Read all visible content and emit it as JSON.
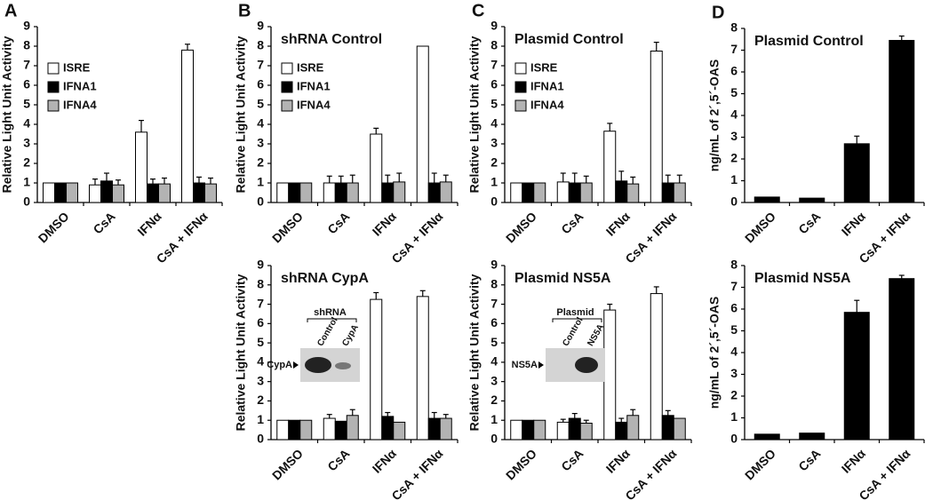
{
  "chart_data": [
    {
      "type": "bar",
      "panel": "A",
      "y_label": "Relative Light Unit Activity",
      "categories": [
        "DMSO",
        "CsA",
        "IFNα",
        "CsA + IFNα"
      ],
      "series": [
        {
          "name": "ISRE",
          "color": "#ffffff",
          "values": [
            1,
            0.9,
            3.6,
            7.8
          ],
          "errors": [
            null,
            0.3,
            0.6,
            0.3
          ]
        },
        {
          "name": "IFNA1",
          "color": "#000000",
          "values": [
            1,
            1.1,
            0.95,
            1
          ],
          "errors": [
            null,
            0.4,
            0.25,
            0.3
          ]
        },
        {
          "name": "IFNA4",
          "color": "#b3b3b3",
          "values": [
            1,
            0.9,
            0.95,
            0.95
          ],
          "errors": [
            null,
            0.25,
            0.3,
            0.3
          ]
        }
      ],
      "ylim": [
        0,
        9
      ],
      "yticks": [
        0,
        1,
        2,
        3,
        4,
        5,
        6,
        7,
        8,
        9
      ],
      "legend": "upper left"
    },
    {
      "type": "bar",
      "panel": "B",
      "title": "shRNA Control",
      "y_label": "Relative Light Unit Activity",
      "categories": [
        "DMSO",
        "CsA",
        "IFNα",
        "CsA + IFNα"
      ],
      "series": [
        {
          "name": "ISRE",
          "color": "#ffffff",
          "values": [
            1,
            1,
            3.5,
            8
          ],
          "errors": [
            null,
            0.35,
            0.3,
            null
          ]
        },
        {
          "name": "IFNA1",
          "color": "#000000",
          "values": [
            1,
            1,
            1,
            1
          ],
          "errors": [
            null,
            0.35,
            0.4,
            0.5
          ]
        },
        {
          "name": "IFNA4",
          "color": "#b3b3b3",
          "values": [
            1,
            1,
            1.05,
            1.05
          ],
          "errors": [
            null,
            0.4,
            0.45,
            0.35
          ]
        }
      ],
      "ylim": [
        0,
        9
      ],
      "yticks": [
        0,
        1,
        2,
        3,
        4,
        5,
        6,
        7,
        8,
        9
      ],
      "legend": "upper left"
    },
    {
      "type": "bar",
      "panel": "C",
      "title": "Plasmid Control",
      "y_label": "Relative Light Unit Activity",
      "categories": [
        "DMSO",
        "CsA",
        "IFNα",
        "CsA + IFNα"
      ],
      "series": [
        {
          "name": "ISRE",
          "color": "#ffffff",
          "values": [
            1,
            1.05,
            3.65,
            7.75
          ],
          "errors": [
            null,
            0.45,
            0.4,
            0.45
          ]
        },
        {
          "name": "IFNA1",
          "color": "#000000",
          "values": [
            1,
            1,
            1.1,
            1
          ],
          "errors": [
            null,
            0.5,
            0.5,
            0.4
          ]
        },
        {
          "name": "IFNA4",
          "color": "#b3b3b3",
          "values": [
            1,
            1,
            0.95,
            1
          ],
          "errors": [
            null,
            0.35,
            0.35,
            0.4
          ]
        }
      ],
      "ylim": [
        0,
        9
      ],
      "yticks": [
        0,
        1,
        2,
        3,
        4,
        5,
        6,
        7,
        8,
        9
      ],
      "legend": "upper left"
    },
    {
      "type": "bar",
      "panel": "D",
      "title": "Plasmid Control",
      "y_label": "ng/mL of 2´,5´-OAS",
      "categories": [
        "DMSO",
        "CsA",
        "IFNα",
        "CsA + IFNα"
      ],
      "values": [
        0.25,
        0.2,
        2.7,
        7.45
      ],
      "errors": [
        null,
        null,
        0.35,
        0.2
      ],
      "color": "#000000",
      "ylim": [
        0,
        8
      ],
      "yticks": [
        0,
        1,
        2,
        3,
        4,
        5,
        6,
        7,
        8
      ]
    },
    {
      "type": "bar",
      "title": "shRNA CypA",
      "y_label": "Relative Light Unit Activity",
      "categories": [
        "DMSO",
        "CsA",
        "IFNα",
        "CsA + IFNα"
      ],
      "series": [
        {
          "color": "#ffffff",
          "values": [
            1,
            1.1,
            7.25,
            7.4
          ],
          "errors": [
            null,
            0.2,
            0.35,
            0.3
          ]
        },
        {
          "color": "#000000",
          "values": [
            1,
            0.95,
            1.2,
            1.1
          ],
          "errors": [
            null,
            null,
            0.2,
            0.3
          ]
        },
        {
          "color": "#b3b3b3",
          "values": [
            1,
            1.25,
            0.9,
            1.1
          ],
          "errors": [
            null,
            0.3,
            null,
            0.2
          ]
        }
      ],
      "ylim": [
        0,
        9
      ],
      "yticks": [
        0,
        1,
        2,
        3,
        4,
        5,
        6,
        7,
        8,
        9
      ],
      "inset": {
        "title": "shRNA",
        "lanes": [
          "Control",
          "CypA"
        ],
        "marker": "CypA"
      }
    },
    {
      "type": "bar",
      "title": "Plasmid NS5A",
      "y_label": "Relative Light Unit Activity",
      "categories": [
        "DMSO",
        "CsA",
        "IFNα",
        "CsA + IFNα"
      ],
      "series": [
        {
          "color": "#ffffff",
          "values": [
            1,
            0.9,
            6.7,
            7.55
          ],
          "errors": [
            null,
            0.15,
            0.3,
            0.35
          ]
        },
        {
          "color": "#000000",
          "values": [
            1,
            1.1,
            0.9,
            1.25
          ],
          "errors": [
            null,
            0.25,
            0.2,
            0.25
          ]
        },
        {
          "color": "#b3b3b3",
          "values": [
            1,
            0.85,
            1.25,
            1.1
          ],
          "errors": [
            null,
            0.15,
            0.3,
            null
          ]
        }
      ],
      "ylim": [
        0,
        9
      ],
      "yticks": [
        0,
        1,
        2,
        3,
        4,
        5,
        6,
        7,
        8,
        9
      ],
      "inset": {
        "title": "Plasmid",
        "lanes": [
          "Control",
          "NS5A"
        ],
        "marker": "NS5A"
      }
    },
    {
      "type": "bar",
      "title": "Plasmid NS5A",
      "y_label": "ng/mL of 2´,5´-OAS",
      "categories": [
        "DMSO",
        "CsA",
        "IFNα",
        "CsA + IFNα"
      ],
      "values": [
        0.25,
        0.3,
        5.85,
        7.4
      ],
      "errors": [
        null,
        null,
        0.55,
        0.15
      ],
      "color": "#000000",
      "ylim": [
        0,
        8
      ],
      "yticks": [
        0,
        1,
        2,
        3,
        4,
        5,
        6,
        7,
        8
      ]
    }
  ]
}
